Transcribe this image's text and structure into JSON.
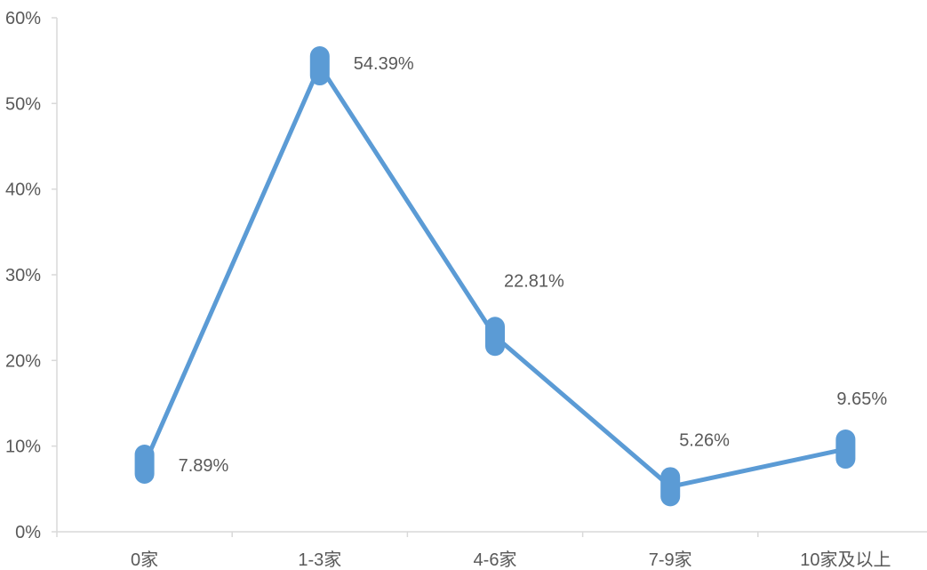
{
  "chart_data": {
    "type": "line",
    "title": "",
    "xlabel": "",
    "ylabel": "",
    "categories": [
      "0家",
      "1-3家",
      "4-6家",
      "7-9家",
      "10家及以上"
    ],
    "series": [
      {
        "values": [
          7.89,
          54.39,
          22.81,
          5.26,
          9.65
        ],
        "data_labels": [
          "7.89%",
          "54.39%",
          "22.81%",
          "5.26%",
          "9.65%"
        ]
      }
    ],
    "ylim": [
      0,
      60
    ],
    "y_ticks": [
      {
        "value": 0,
        "label": "0%"
      },
      {
        "value": 10,
        "label": "10%"
      },
      {
        "value": 20,
        "label": "20%"
      },
      {
        "value": 30,
        "label": "30%"
      },
      {
        "value": 40,
        "label": "40%"
      },
      {
        "value": 50,
        "label": "50%"
      },
      {
        "value": 60,
        "label": "60%"
      }
    ],
    "grid": false,
    "legend": "none",
    "colors": {
      "line": "#5b9bd5",
      "marker": "#5b9bd5",
      "axis": "#d9d9d9",
      "text": "#595959"
    }
  }
}
